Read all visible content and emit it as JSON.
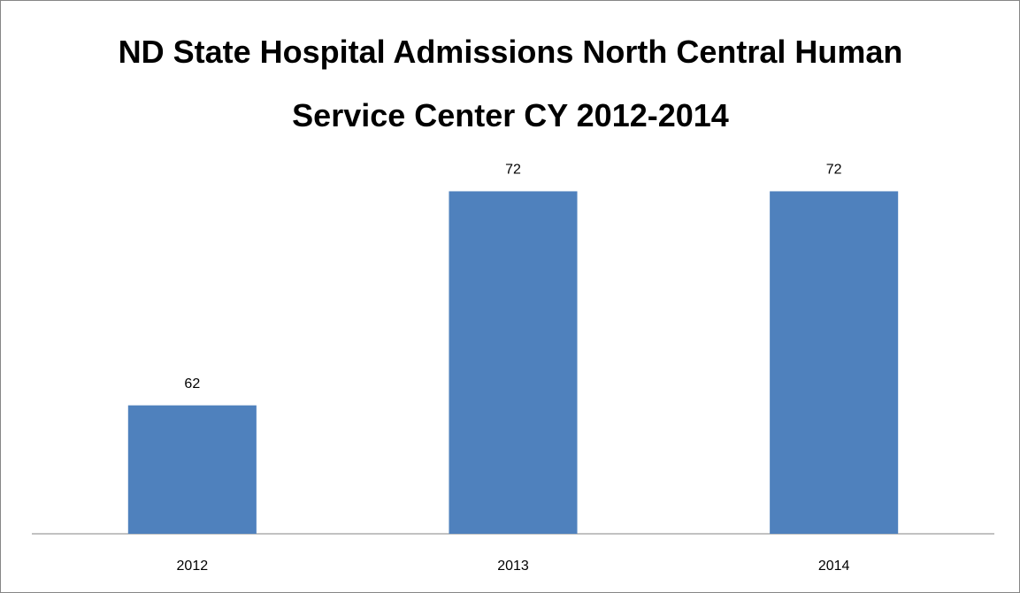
{
  "chart_data": {
    "type": "bar",
    "title": "ND State Hospital Admissions North Central Human Service Center CY 2012-2014",
    "categories": [
      "2012",
      "2013",
      "2014"
    ],
    "values": [
      62,
      72,
      72
    ],
    "color": "#4f81bd",
    "ylim": [
      56,
      74
    ]
  }
}
